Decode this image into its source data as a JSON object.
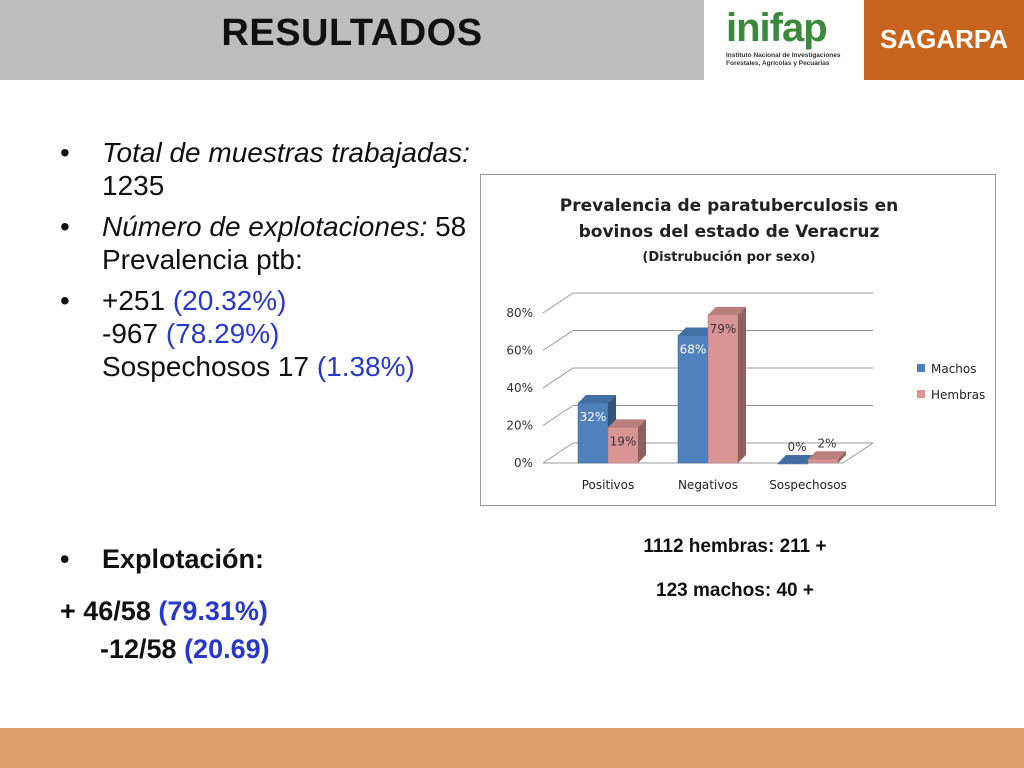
{
  "header": {
    "title": "RESULTADOS"
  },
  "logos": {
    "inifap_word": "inifap",
    "inifap_sub": "Instituto Nacional de Investigaciones Forestales, Agrícolas y Pecuarias",
    "sagarpa": "SAGARPA"
  },
  "bullets": {
    "b1_italic": "Total de muestras trabajadas:",
    "b1_value": " 1235",
    "b2_italic": "Número de explotaciones:",
    "b2_value": " 58",
    "b2_line2": "Prevalencia ptb:",
    "b3_pos": "+251 ",
    "b3_pos_pct": "(20.32%)",
    "b3_neg": "-967  ",
    "b3_neg_pct": "(78.29%)",
    "b3_sus": "Sospechosos 17 ",
    "b3_sus_pct": "(1.38%)",
    "b4_label": "Explotación:"
  },
  "explotacion": {
    "pos": "+ 46/58 ",
    "pos_pct": "(79.31%)",
    "neg": "-12/58 ",
    "neg_pct": "(20.69)"
  },
  "captions": {
    "hembras": "1112 hembras: 211 +",
    "machos": "123 machos: 40 +"
  },
  "chart_data": {
    "type": "bar",
    "title": "Prevalencia de paratuberculosis en bovinos del estado de Veracruz",
    "subtitle": "(Distrubución por sexo)",
    "categories": [
      "Positivos",
      "Negativos",
      "Sospechosos"
    ],
    "series": [
      {
        "name": "Machos",
        "values": [
          32,
          68,
          0
        ],
        "labels": [
          "32%",
          "68%",
          "0%"
        ],
        "color": "#4f81bd"
      },
      {
        "name": "Hembras",
        "values": [
          19,
          79,
          2
        ],
        "labels": [
          "19%",
          "79%",
          "2%"
        ],
        "color": "#d99594"
      }
    ],
    "ylim": [
      0,
      80
    ],
    "yticks": [
      "0%",
      "20%",
      "40%",
      "60%",
      "80%"
    ],
    "legend": "right",
    "grid": true
  }
}
